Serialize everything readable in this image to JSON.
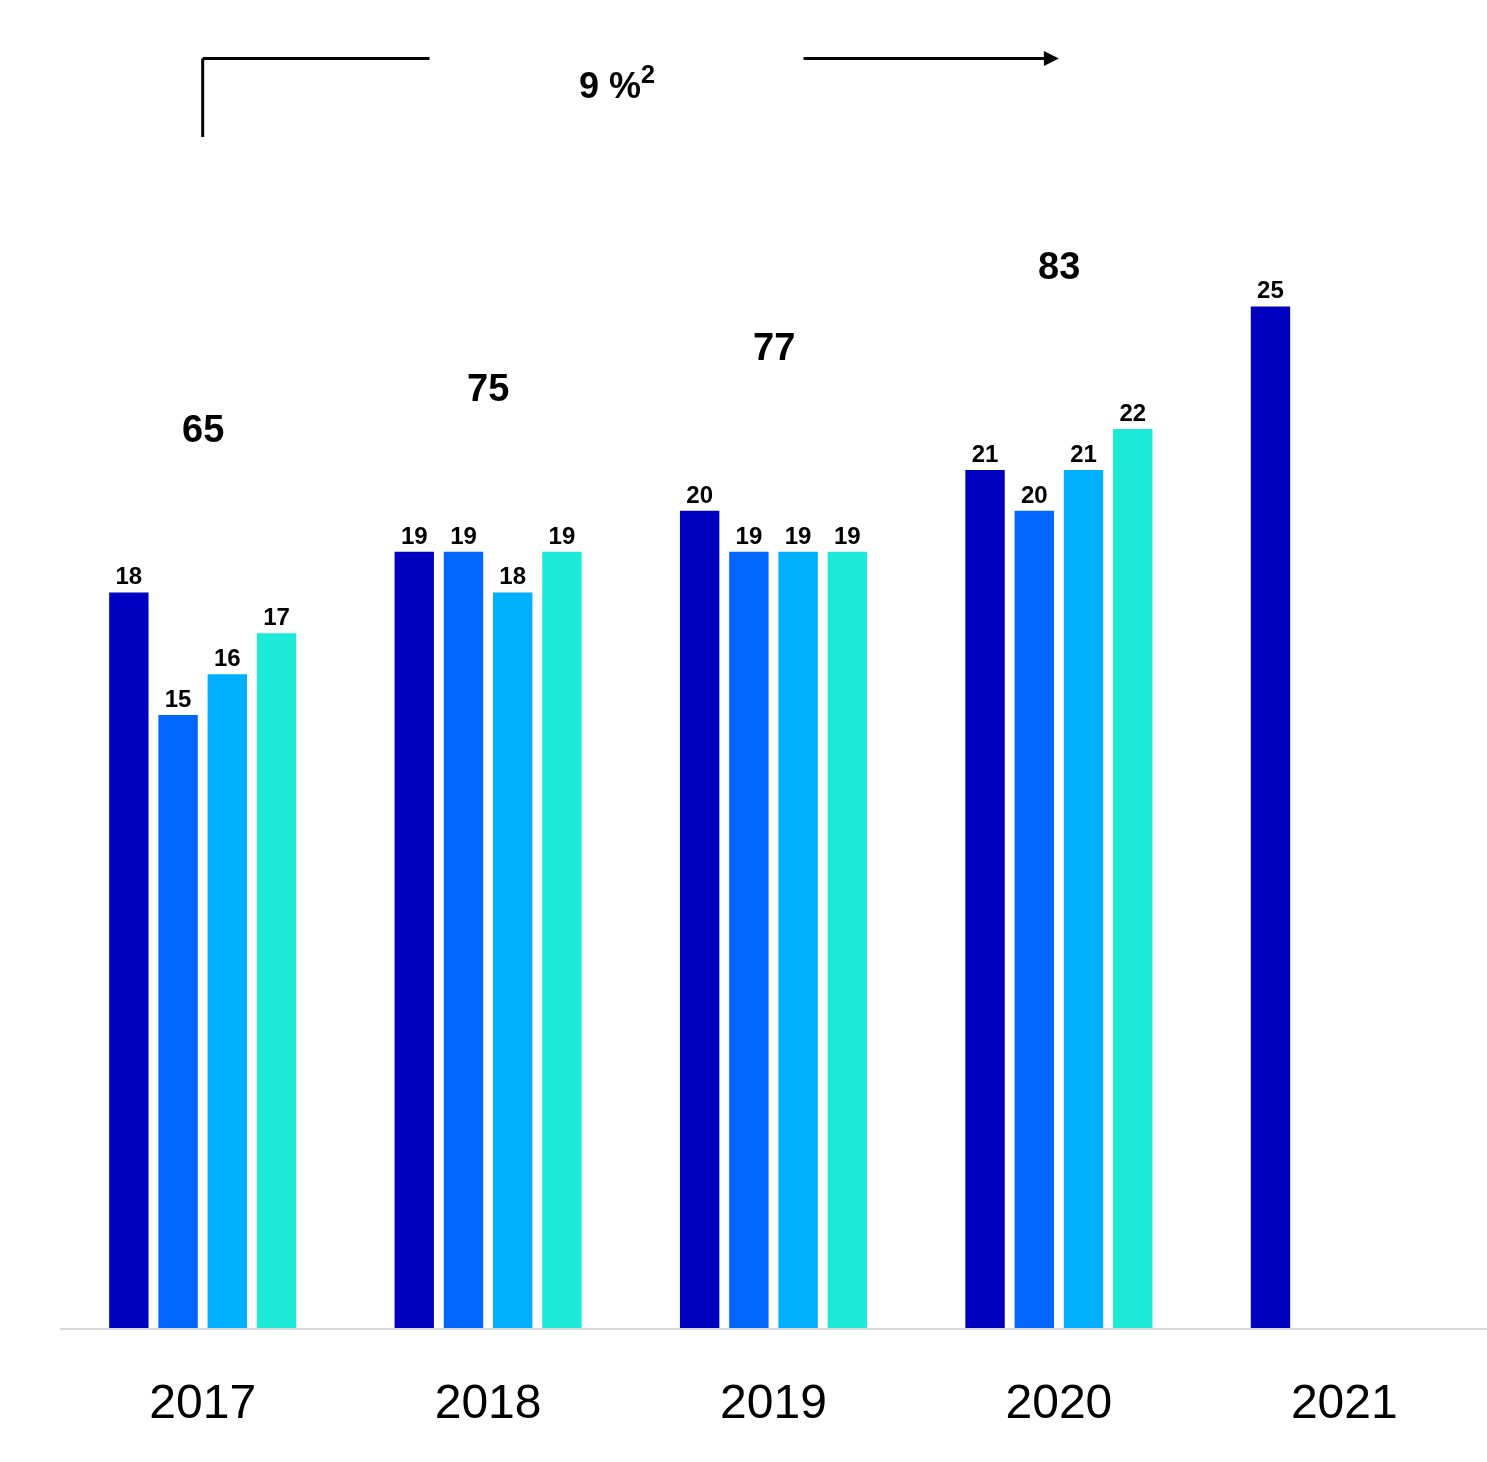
{
  "chart_data": {
    "type": "bar",
    "categories": [
      "2017",
      "2018",
      "2019",
      "2020",
      "2021"
    ],
    "series": [
      {
        "color": "#0000c0",
        "values": [
          18,
          19,
          20,
          21,
          25
        ]
      },
      {
        "color": "#0066ff",
        "values": [
          15,
          19,
          19,
          20,
          null
        ]
      },
      {
        "color": "#00b0ff",
        "values": [
          16,
          18,
          19,
          21,
          null
        ]
      },
      {
        "color": "#1de9d9",
        "values": [
          17,
          19,
          19,
          22,
          null
        ]
      }
    ],
    "annotations": [
      "9 %$^{2}$",
      "65",
      "75",
      "77",
      "83"
    ],
    "ylim": [
      0,
      32.5
    ],
    "data_labels": true,
    "legend": false,
    "tick_labels": "x"
  }
}
